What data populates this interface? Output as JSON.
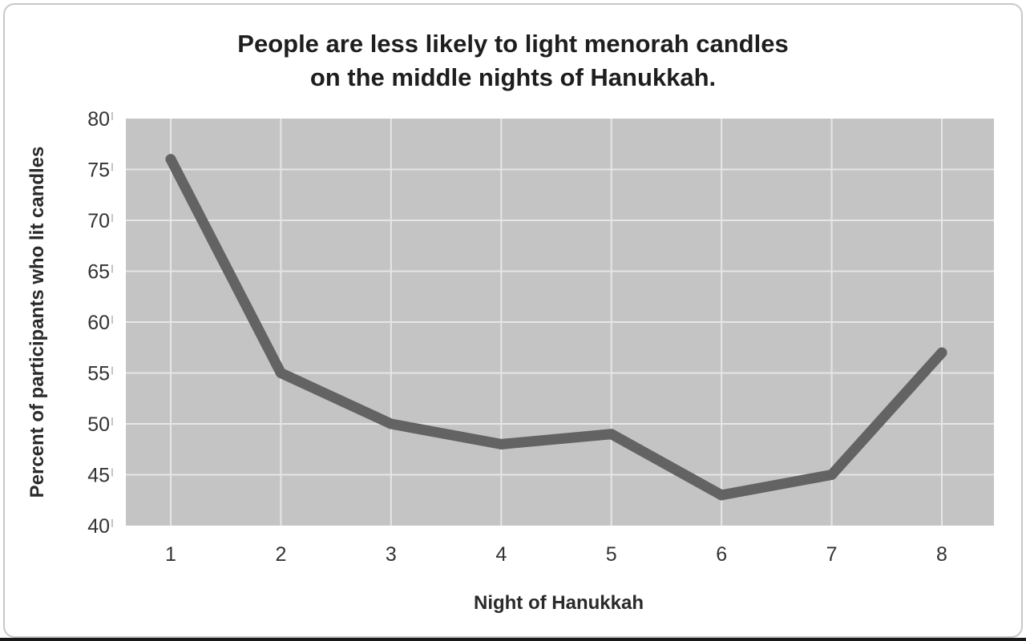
{
  "chart_data": {
    "type": "line",
    "title_lines": [
      "People are less likely to light menorah candles",
      "on the middle nights of Hanukkah."
    ],
    "xlabel": "Night of Hanukkah",
    "ylabel": "Percent of participants who lit candles",
    "x": [
      1,
      2,
      3,
      4,
      5,
      6,
      7,
      8
    ],
    "values": [
      76,
      55,
      50,
      48,
      49,
      43,
      45,
      57
    ],
    "xticks": [
      "1",
      "2",
      "3",
      "4",
      "5",
      "6",
      "7",
      "8"
    ],
    "yticks": [
      "40",
      "45",
      "50",
      "55",
      "60",
      "65",
      "70",
      "75",
      "80"
    ],
    "ylim": [
      40,
      80
    ],
    "grid": true,
    "colors": {
      "plot_background": "#c4c4c4",
      "gridline": "#e6e6e6",
      "line": "#636363"
    }
  }
}
